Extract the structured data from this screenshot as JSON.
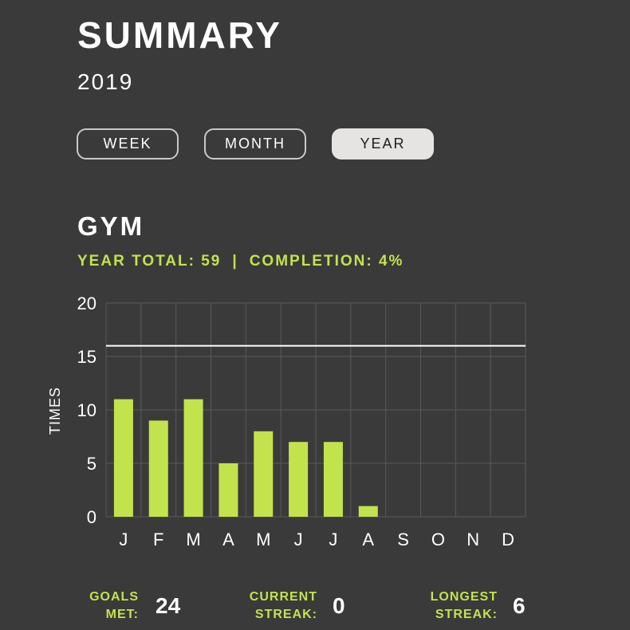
{
  "header": {
    "title": "SUMMARY",
    "year": "2019"
  },
  "period_tabs": [
    {
      "label": "WEEK",
      "active": false
    },
    {
      "label": "MONTH",
      "active": false
    },
    {
      "label": "YEAR",
      "active": true
    }
  ],
  "section": {
    "title": "GYM",
    "year_total_label": "YEAR TOTAL: 59",
    "separator": "|",
    "completion_label": "COMPLETION: 4%"
  },
  "chart_data": {
    "type": "bar",
    "categories": [
      "J",
      "F",
      "M",
      "A",
      "M",
      "J",
      "J",
      "A",
      "S",
      "O",
      "N",
      "D"
    ],
    "values": [
      11,
      9,
      11,
      5,
      8,
      7,
      7,
      1,
      0,
      0,
      0,
      0
    ],
    "ylabel": "TIMES",
    "xlabel": "",
    "ylim": [
      0,
      20
    ],
    "yticks": [
      0,
      5,
      10,
      15,
      20
    ],
    "goal_line": 16,
    "grid": true,
    "bar_color": "#c3e34c",
    "goal_line_color": "#ffffff"
  },
  "stats": [
    {
      "label_line1": "GOALS",
      "label_line2": "MET:",
      "value": "24"
    },
    {
      "label_line1": "CURRENT",
      "label_line2": "STREAK:",
      "value": "0"
    },
    {
      "label_line1": "LONGEST",
      "label_line2": "STREAK:",
      "value": "6"
    }
  ],
  "colors": {
    "background": "#3a3a3a",
    "accent": "#c3e34c",
    "active_tab_bg": "#e6e3e3"
  }
}
